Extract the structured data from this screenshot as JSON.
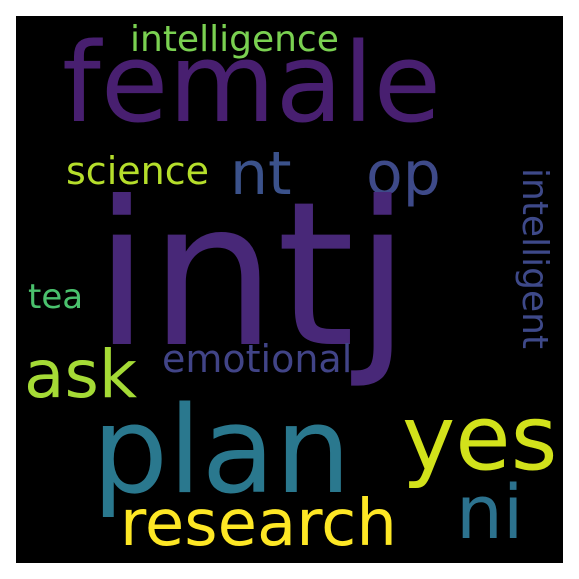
{
  "words": {
    "intj": {
      "text": "intj",
      "color": "#482878"
    },
    "female": {
      "text": "female",
      "color": "#481f70"
    },
    "plan": {
      "text": "plan",
      "color": "#2a788e"
    },
    "research": {
      "text": "research",
      "color": "#fde725"
    },
    "yes": {
      "text": "yes",
      "color": "#d2e21b"
    },
    "ni": {
      "text": "ni",
      "color": "#2c728e"
    },
    "ask": {
      "text": "ask",
      "color": "#a5db36"
    },
    "nt": {
      "text": "nt",
      "color": "#3b528b"
    },
    "op": {
      "text": "op",
      "color": "#3e4a89"
    },
    "intelligence": {
      "text": "intelligence",
      "color": "#7ad151"
    },
    "science": {
      "text": "science",
      "color": "#b5de2b"
    },
    "emotional": {
      "text": "emotional",
      "color": "#414487"
    },
    "intelligent": {
      "text": "intelligent",
      "color": "#3e4989"
    },
    "tea": {
      "text": "tea",
      "color": "#4ac16d"
    }
  }
}
